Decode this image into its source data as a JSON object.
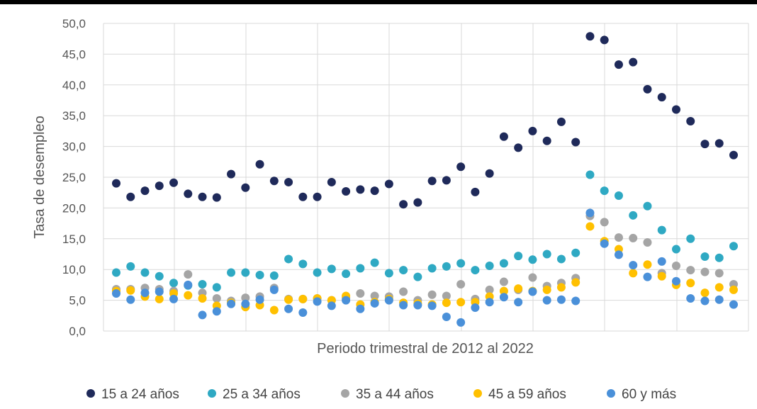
{
  "chart_data": {
    "type": "scatter",
    "xlabel": "Periodo trimestral de 2012 al 2022",
    "ylabel": "Tasa de desempleo",
    "ylim": [
      0,
      50
    ],
    "yticks": [
      "0,0",
      "5,0",
      "10,0",
      "15,0",
      "20,0",
      "25,0",
      "30,0",
      "35,0",
      "40,0",
      "45,0",
      "50,0"
    ],
    "grid": true,
    "legend_position": "bottom",
    "n_periods": 44,
    "series": [
      {
        "name": "15 a 24 años",
        "color": "#1f2a5a",
        "values": [
          24.0,
          21.8,
          22.8,
          23.6,
          24.1,
          22.3,
          21.8,
          21.7,
          25.5,
          23.3,
          27.1,
          24.4,
          24.2,
          21.8,
          21.8,
          24.2,
          22.7,
          23.0,
          22.8,
          23.9,
          20.6,
          20.9,
          24.4,
          24.5,
          26.7,
          22.6,
          25.6,
          31.6,
          29.8,
          32.5,
          30.9,
          34.0,
          30.7,
          47.9,
          47.3,
          43.3,
          43.7,
          39.3,
          38.0,
          36.0,
          34.1,
          30.4,
          30.5,
          28.6
        ]
      },
      {
        "name": "25 a 34 años",
        "color": "#2fa9c3",
        "values": [
          9.5,
          10.5,
          9.5,
          8.9,
          7.8,
          7.4,
          7.6,
          7.1,
          9.5,
          9.5,
          9.1,
          9.0,
          11.7,
          10.9,
          9.5,
          10.1,
          9.3,
          10.2,
          11.1,
          9.4,
          9.9,
          8.8,
          10.2,
          10.5,
          11.0,
          9.9,
          10.6,
          11.0,
          12.2,
          11.6,
          12.5,
          11.7,
          12.7,
          25.4,
          22.8,
          22.0,
          18.8,
          20.3,
          16.4,
          13.3,
          15.0,
          12.1,
          11.9,
          13.8
        ]
      },
      {
        "name": "35 a 44 años",
        "color": "#a5a5a5",
        "values": [
          6.8,
          6.8,
          7.0,
          6.8,
          6.5,
          9.2,
          6.2,
          5.3,
          4.9,
          5.4,
          5.6,
          7.0,
          5.2,
          5.2,
          5.3,
          5.0,
          5.4,
          6.1,
          5.7,
          5.6,
          6.4,
          5.0,
          5.9,
          5.7,
          7.6,
          5.2,
          6.7,
          8.0,
          6.7,
          8.7,
          7.3,
          7.8,
          8.6,
          18.7,
          17.7,
          15.2,
          15.1,
          14.4,
          9.4,
          10.6,
          9.9,
          9.6,
          9.4,
          7.6
        ]
      },
      {
        "name": "45 a 59 años",
        "color": "#ffc000",
        "values": [
          6.5,
          6.6,
          5.6,
          5.2,
          6.1,
          5.8,
          5.3,
          4.1,
          4.6,
          3.9,
          4.2,
          3.4,
          5.1,
          5.2,
          5.3,
          5.0,
          5.7,
          4.3,
          4.7,
          5.2,
          4.6,
          4.5,
          4.3,
          4.6,
          4.7,
          4.7,
          5.6,
          6.5,
          6.9,
          6.5,
          6.7,
          7.1,
          7.9,
          17.0,
          14.6,
          13.3,
          9.4,
          10.8,
          8.9,
          7.5,
          7.8,
          6.2,
          7.1,
          6.7
        ]
      },
      {
        "name": "60 y más",
        "color": "#4a90d9",
        "values": [
          6.1,
          5.1,
          6.2,
          6.4,
          5.2,
          7.5,
          2.6,
          3.2,
          4.4,
          4.4,
          5.1,
          6.7,
          3.6,
          3.0,
          4.8,
          4.1,
          5.0,
          3.6,
          4.5,
          5.0,
          4.2,
          4.2,
          4.1,
          2.3,
          1.4,
          3.8,
          4.7,
          5.5,
          4.7,
          6.4,
          5.0,
          5.1,
          4.9,
          19.2,
          14.2,
          12.4,
          10.7,
          8.8,
          11.3,
          8.1,
          5.3,
          4.9,
          5.1,
          4.3
        ]
      }
    ]
  }
}
